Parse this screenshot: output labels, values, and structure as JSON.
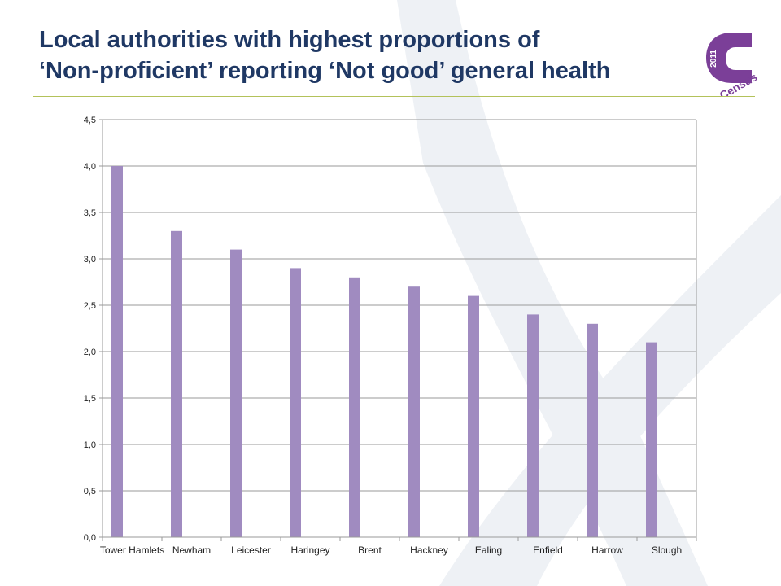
{
  "slide": {
    "title_line1": "Local authorities with highest proportions of",
    "title_line2": "‘Non-proficient’ reporting ‘Not good’ general health"
  },
  "logo": {
    "year": "2011",
    "word": "Census",
    "color": "#7b3f98"
  },
  "colors": {
    "title": "#1f3864",
    "bar": "#a08bc0",
    "swoosh": "#eef1f5",
    "rule": "#b3c25a",
    "grid": "#9a9a9a"
  },
  "chart_data": {
    "type": "bar",
    "categories": [
      "Tower Hamlets",
      "Newham",
      "Leicester",
      "Haringey",
      "Brent",
      "Hackney",
      "Ealing",
      "Enfield",
      "Harrow",
      "Slough"
    ],
    "values": [
      4.0,
      3.3,
      3.1,
      2.9,
      2.8,
      2.7,
      2.6,
      2.4,
      2.3,
      2.1
    ],
    "ylim": [
      0,
      4.5
    ],
    "yticks": [
      "0,0",
      "0,5",
      "1,0",
      "1,5",
      "2,0",
      "2,5",
      "3,0",
      "3,5",
      "4,0",
      "4,5"
    ],
    "title": "",
    "xlabel": "",
    "ylabel": "",
    "grid": true,
    "legend": "none"
  }
}
